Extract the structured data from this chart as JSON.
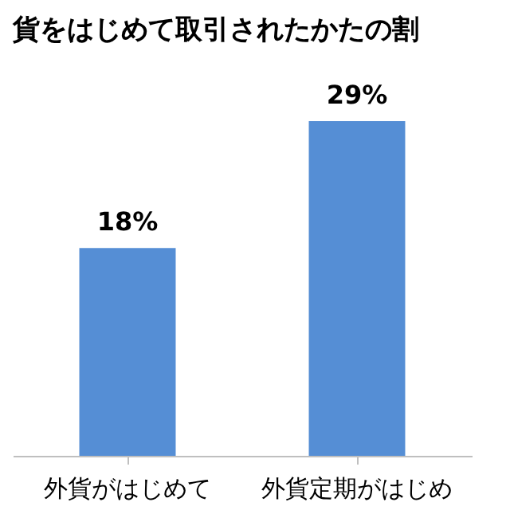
{
  "chart_data": {
    "type": "bar",
    "title": "貨をはじめて取引されたかたの割",
    "categories": [
      "外貨がはじめて",
      "外貨定期がはじめ"
    ],
    "values": [
      18,
      29
    ],
    "colors": [
      "#558ed5",
      "#558ed5"
    ],
    "value_labels": [
      "18%",
      "29%"
    ],
    "grid": false
  }
}
